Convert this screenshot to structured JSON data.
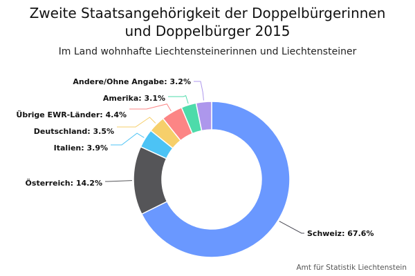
{
  "chart_data": {
    "type": "pie",
    "variant": "donut",
    "title_line1": "Zweite Staatsangehörigkeit der Doppelbürgerinnen",
    "title_line2": "und Doppelbürger 2015",
    "subtitle": "Im Land wohnhafte Liechtensteinerinnen und Liechtensteiner",
    "credit": "Amt für Statistik Liechtenstein",
    "slices": [
      {
        "label": "Schweiz",
        "value": 67.6,
        "color": "#6a98ff",
        "display": "Schweiz: 67.6%"
      },
      {
        "label": "Österreich",
        "value": 14.2,
        "color": "#555558",
        "display": "Österreich: 14.2%"
      },
      {
        "label": "Italien",
        "value": 3.9,
        "color": "#4cc3f5",
        "display": "Italien: 3.9%"
      },
      {
        "label": "Deutschland",
        "value": 3.5,
        "color": "#f6cf6a",
        "display": "Deutschland: 3.5%"
      },
      {
        "label": "Übrige EWR-Länder",
        "value": 4.4,
        "color": "#fc8585",
        "display": "Übrige EWR-Länder: 4.4%"
      },
      {
        "label": "Amerika",
        "value": 3.1,
        "color": "#4ddbaa",
        "display": "Amerika: 3.1%"
      },
      {
        "label": "Andere/Ohne Angabe",
        "value": 3.2,
        "color": "#ad97ec",
        "display": "Andere/Ohne Angabe: 3.2%"
      }
    ]
  }
}
